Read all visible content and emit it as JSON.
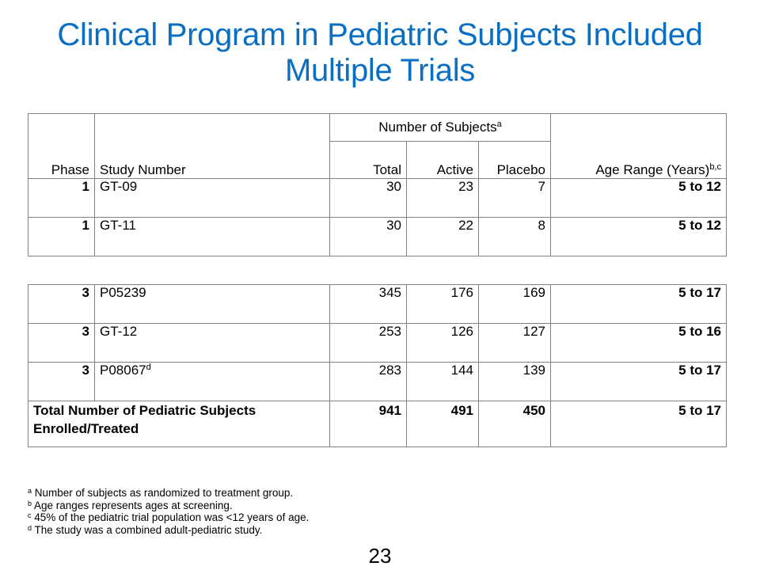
{
  "title": {
    "line1": "Clinical Program in Pediatric Subjects Included",
    "line2": "Multiple Trials"
  },
  "header": {
    "phase": "Phase",
    "study_number": "Study Number",
    "number_of_subjects": "Number  of Subjects",
    "number_of_subjects_sup": "a",
    "total": "Total",
    "active": "Active",
    "placebo": "Placebo",
    "age_range": "Age  Range (Years)",
    "age_range_sup": "b,c"
  },
  "rows_phase1": [
    {
      "phase": "1",
      "study": "GT-09",
      "total": "30",
      "active": "23",
      "placebo": "7",
      "age": "5 to 12"
    },
    {
      "phase": "1",
      "study": "GT-11",
      "total": "30",
      "active": "22",
      "placebo": "8",
      "age": "5 to 12"
    }
  ],
  "rows_phase3": [
    {
      "phase": "3",
      "study": "P05239",
      "study_sup": "",
      "total": "345",
      "active": "176",
      "placebo": "169",
      "age": "5 to 17"
    },
    {
      "phase": "3",
      "study": "GT-12",
      "study_sup": "",
      "total": "253",
      "active": "126",
      "placebo": "127",
      "age": "5 to 16"
    },
    {
      "phase": "3",
      "study": "P08067",
      "study_sup": "d",
      "total": "283",
      "active": "144",
      "placebo": "139",
      "age": "5 to 17"
    }
  ],
  "total_row": {
    "label": "Total Number of Pediatric Subjects Enrolled/Treated",
    "total": "941",
    "active": "491",
    "placebo": "450",
    "age": "5 to 17"
  },
  "footnotes": [
    {
      "mark": "a",
      "text": " Number  of subjects as randomized to treatment group."
    },
    {
      "mark": "b",
      "text": " Age ranges represents ages at screening."
    },
    {
      "mark": "c",
      "text": " 45% of the pediatric trial population was <12 years of age."
    },
    {
      "mark": "d",
      "text": " The study was a combined adult-pediatric study."
    }
  ],
  "page_number": "23"
}
